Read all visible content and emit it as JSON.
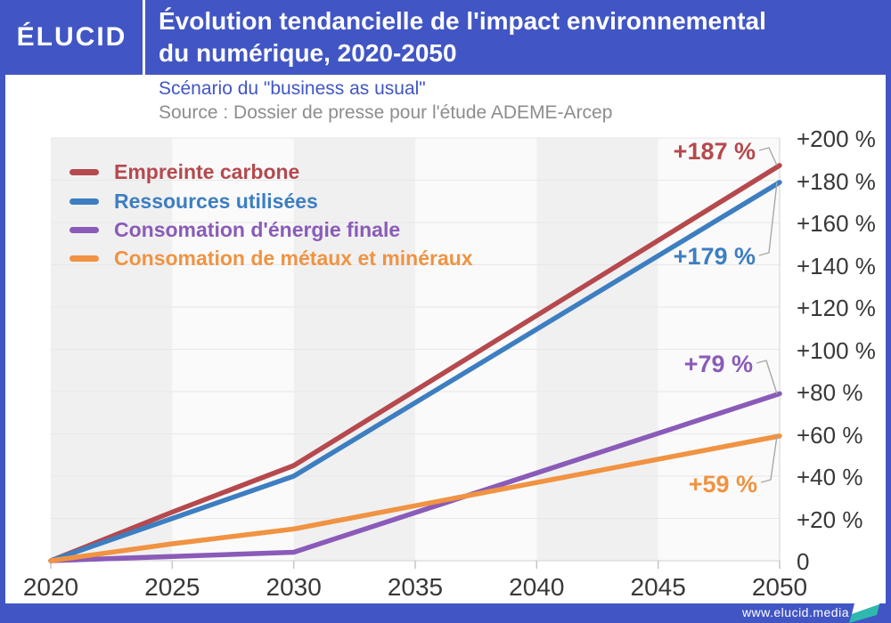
{
  "header": {
    "logo": "ÉLUCID",
    "title_line1": "Évolution tendancielle de l'impact environnemental",
    "title_line2": "du numérique, 2020-2050"
  },
  "subtitle": "Scénario du \"business as usual\"",
  "source": "Source : Dossier de presse pour l'étude ADEME-Arcep",
  "footer": {
    "url": "www.elucid.media",
    "flag_icon": "elucid-flag-icon"
  },
  "colors": {
    "brand_blue": "#4156c4",
    "flag_teal": "#2fb9ae",
    "band_gray": "#f0f0f1",
    "band_light": "#fafafa",
    "gridline": "#e7e7e9",
    "axis_line": "#d2d2d4",
    "tick": "#c6c6c8",
    "connector": "#a8a8a8",
    "axis_text": "#383838"
  },
  "chart_data": {
    "type": "line",
    "title": "Évolution tendancielle de l'impact environnemental du numérique, 2020-2050",
    "subtitle": "Scénario du \"business as usual\"",
    "x": [
      2020,
      2025,
      2030,
      2050
    ],
    "series": [
      {
        "name": "Empreinte carbone",
        "color": "#b5494d",
        "values": [
          0,
          23,
          45,
          187
        ],
        "end_label": "+187 %"
      },
      {
        "name": "Ressources utilisées",
        "color": "#3d7ec1",
        "values": [
          0,
          20,
          40,
          179
        ],
        "end_label": "+179 %"
      },
      {
        "name": "Consomation d'énergie finale",
        "color": "#8a5bb8",
        "values": [
          0,
          2,
          4,
          79
        ],
        "end_label": "+79 %"
      },
      {
        "name": "Consomation de métaux et minéraux",
        "color": "#f09342",
        "values": [
          0,
          8,
          15,
          59
        ],
        "end_label": "+59 %"
      }
    ],
    "x_ticks": [
      "2020",
      "2025",
      "2030",
      "2035",
      "2040",
      "2045",
      "2050"
    ],
    "y_ticks": [
      "+200 %",
      "+180 %",
      "+160 %",
      "+140 %",
      "+120 %",
      "+100 %",
      "+80 %",
      "+60 %",
      "+40 %",
      "+20 %",
      "0"
    ],
    "xlim": [
      2020,
      2050
    ],
    "ylim": [
      0,
      200
    ],
    "y_step": 20,
    "grid": "horizontal",
    "background_bands": "alternating vertical 5-year bands",
    "legend_position": "top-left",
    "y_axis_position": "right"
  }
}
